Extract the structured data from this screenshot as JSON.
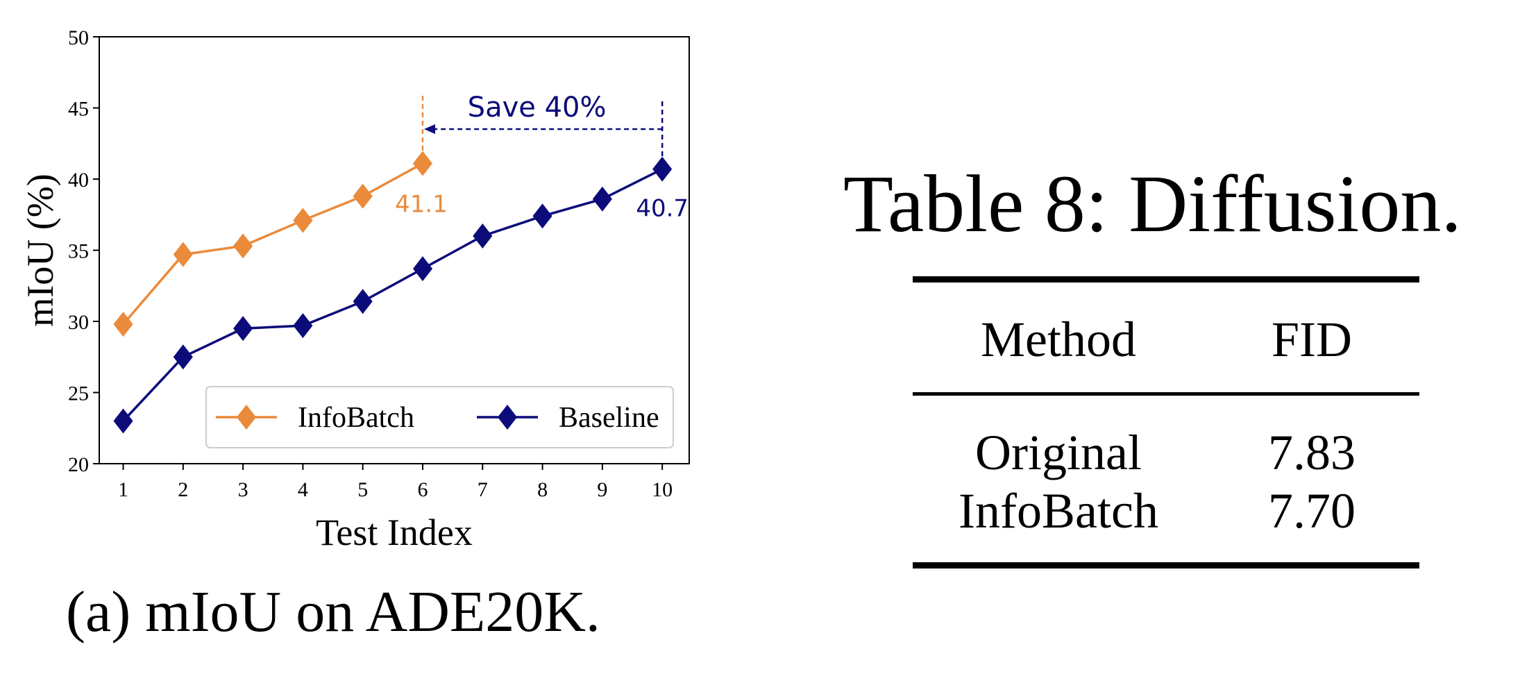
{
  "chart_data": {
    "type": "line",
    "xlabel": "Test Index",
    "ylabel": "mIoU (%)",
    "x": [
      1,
      2,
      3,
      4,
      5,
      6,
      7,
      8,
      9,
      10
    ],
    "xlim": [
      0.6,
      10.45
    ],
    "ylim": [
      20,
      50
    ],
    "yticks": [
      20,
      25,
      30,
      35,
      40,
      45,
      50
    ],
    "grid": false,
    "legend_position": "lower-right",
    "series": [
      {
        "name": "InfoBatch",
        "color": "#ea8a3b",
        "marker": "diamond",
        "x": [
          1,
          2,
          3,
          4,
          5,
          6
        ],
        "values": [
          29.8,
          34.7,
          35.3,
          37.1,
          38.8,
          41.1
        ]
      },
      {
        "name": "Baseline",
        "color": "#0b0b7a",
        "marker": "diamond",
        "x": [
          1,
          2,
          3,
          4,
          5,
          6,
          7,
          8,
          9,
          10
        ],
        "values": [
          23.0,
          27.5,
          29.5,
          29.7,
          31.4,
          33.7,
          36.0,
          37.4,
          38.6,
          40.7
        ]
      }
    ],
    "annotations": {
      "infobatch_end_label": "41.1",
      "baseline_end_label": "40.7",
      "save_label": "Save 40%"
    }
  },
  "caption": "(a) mIoU on ADE20K.",
  "table": {
    "title": "Table 8: Diffusion.",
    "headers": [
      "Method",
      "FID"
    ],
    "rows": [
      [
        "Original",
        "7.83"
      ],
      [
        "InfoBatch",
        "7.70"
      ]
    ]
  }
}
